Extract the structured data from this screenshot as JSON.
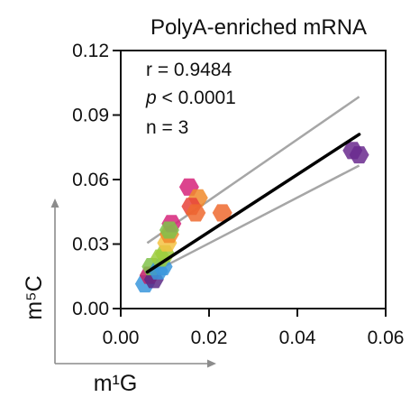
{
  "chart_data": {
    "type": "scatter",
    "title": "PolyA-enriched mRNA",
    "xlabel": "m¹G",
    "ylabel": "m⁵C",
    "xlim": [
      0,
      0.06
    ],
    "ylim": [
      0,
      0.12
    ],
    "xticks": [
      "0.00",
      "0.02",
      "0.04",
      "0.06"
    ],
    "yticks": [
      "0.00",
      "0.03",
      "0.06",
      "0.09",
      "0.12"
    ],
    "xtick_values": [
      0,
      0.02,
      0.04,
      0.06
    ],
    "ytick_values": [
      0,
      0.03,
      0.06,
      0.09,
      0.12
    ],
    "grid": false,
    "annotations": {
      "r_text": "r = 0.9484",
      "p_label": "p",
      "p_text": " < 0.0001",
      "n_text": "n = 3"
    },
    "regression": {
      "x_range": [
        0.006,
        0.054
      ],
      "y_range": [
        0.017,
        0.081
      ],
      "ci_upper_x": [
        0.006,
        0.054
      ],
      "ci_upper_y": [
        0.0305,
        0.0985
      ],
      "ci_lower_x": [
        0.006,
        0.054
      ],
      "ci_lower_y": [
        0.0155,
        0.0665
      ],
      "line_color": "#000000",
      "ci_color": "#a6a6a6"
    },
    "points": [
      {
        "x": 0.0055,
        "y": 0.0115,
        "color": "#3a96dc"
      },
      {
        "x": 0.0065,
        "y": 0.0155,
        "color": "#c21c66"
      },
      {
        "x": 0.0075,
        "y": 0.0135,
        "color": "#5b2a86"
      },
      {
        "x": 0.007,
        "y": 0.0195,
        "color": "#7fc24a"
      },
      {
        "x": 0.0085,
        "y": 0.0175,
        "color": "#3a96dc"
      },
      {
        "x": 0.0095,
        "y": 0.0195,
        "color": "#3a96dc"
      },
      {
        "x": 0.009,
        "y": 0.0235,
        "color": "#9ccc3c"
      },
      {
        "x": 0.01,
        "y": 0.0255,
        "color": "#9ccc3c"
      },
      {
        "x": 0.0105,
        "y": 0.0305,
        "color": "#f5c242"
      },
      {
        "x": 0.011,
        "y": 0.0345,
        "color": "#f08a2c"
      },
      {
        "x": 0.0115,
        "y": 0.0395,
        "color": "#d6257a"
      },
      {
        "x": 0.011,
        "y": 0.0365,
        "color": "#7fc24a"
      },
      {
        "x": 0.0155,
        "y": 0.0565,
        "color": "#d6257a"
      },
      {
        "x": 0.0175,
        "y": 0.0515,
        "color": "#f08a2c"
      },
      {
        "x": 0.016,
        "y": 0.0475,
        "color": "#e8433a"
      },
      {
        "x": 0.017,
        "y": 0.0445,
        "color": "#ee6a2f"
      },
      {
        "x": 0.023,
        "y": 0.0445,
        "color": "#ee6a2f"
      },
      {
        "x": 0.0525,
        "y": 0.0735,
        "color": "#6a2a8e"
      },
      {
        "x": 0.054,
        "y": 0.0715,
        "color": "#6a2a8e"
      }
    ],
    "axis_arrow_color": "#8c8c8c"
  }
}
